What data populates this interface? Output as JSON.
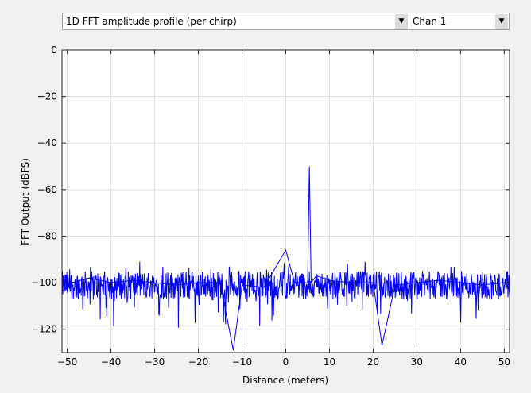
{
  "controls": {
    "plot_select": {
      "value": "1D FFT amplitude profile (per chirp)",
      "icon": "chevron-down-icon"
    },
    "channel_select": {
      "value": "Chan 1",
      "icon": "chevron-down-icon"
    }
  },
  "chart_data": {
    "type": "line",
    "title": "",
    "xlabel": "Distance (meters)",
    "ylabel": "FFT Output (dBFS)",
    "xlim": [
      -51.2,
      51.2
    ],
    "ylim": [
      -130,
      0
    ],
    "xticks": [
      -50,
      -40,
      -30,
      -20,
      -10,
      0,
      10,
      20,
      30,
      40,
      50
    ],
    "yticks": [
      0,
      -20,
      -40,
      -60,
      -80,
      -100,
      -120
    ],
    "grid": true,
    "legend": "none",
    "line_color": "#0000ff",
    "series": [
      {
        "noise_floor_mean_dbfs": -101,
        "noise_floor_range_dbfs": [
          -128,
          -91
        ],
        "x": [
          -51.2,
          -49,
          -45,
          -40,
          -35,
          -30,
          -25,
          -20,
          -15,
          -12,
          -10,
          -5,
          0,
          2,
          5,
          5.4,
          5.8,
          7,
          10,
          15,
          20,
          22,
          25,
          30,
          35,
          40,
          45,
          50,
          51.2
        ],
        "y": [
          -104,
          -100,
          -98,
          -100,
          -99,
          -100,
          -101,
          -100,
          -100,
          -129,
          -101,
          -102,
          -86,
          -100,
          -100,
          -50,
          -100,
          -97,
          -99,
          -100,
          -100,
          -127,
          -101,
          -100,
          -99,
          -100,
          -101,
          -100,
          -103
        ]
      }
    ]
  }
}
